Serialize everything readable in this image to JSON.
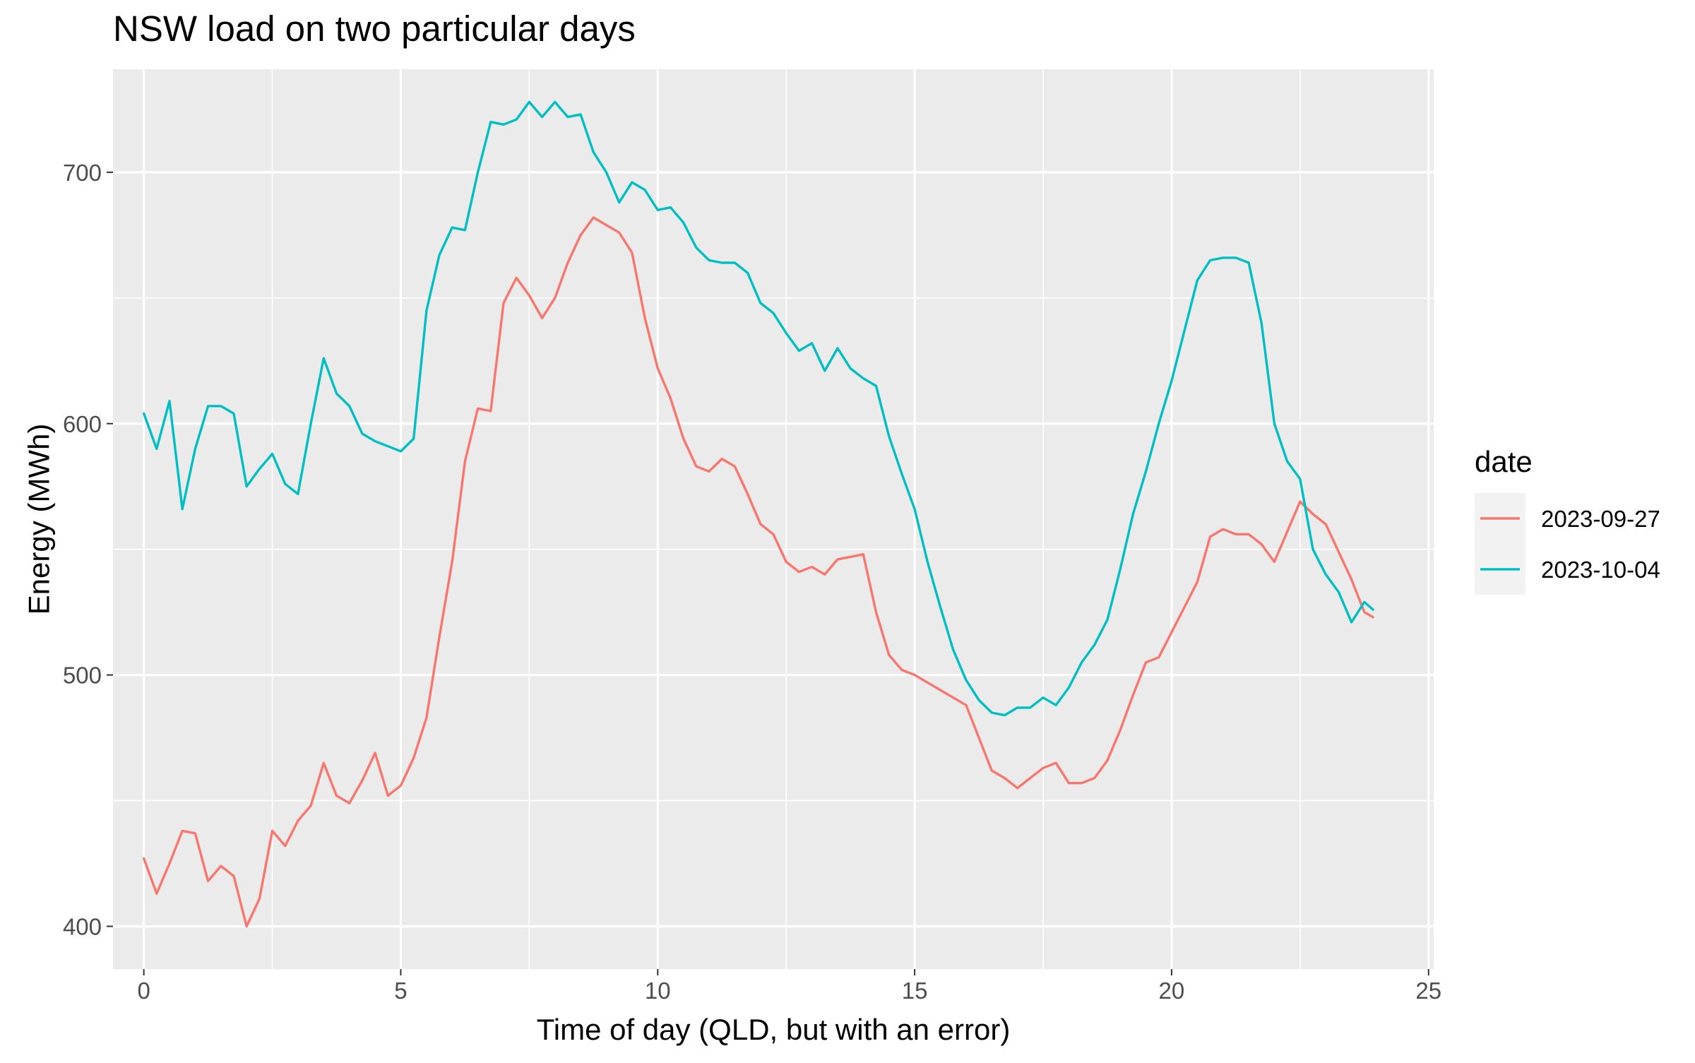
{
  "chart_data": {
    "type": "line",
    "title": "NSW load on two particular days",
    "xlabel": "Time of day (QLD, but with an error)",
    "ylabel": "Energy (MWh)",
    "xlim": [
      -0.6,
      25.1
    ],
    "ylim": [
      383,
      741
    ],
    "x_ticks": [
      0,
      5,
      10,
      15,
      20,
      25
    ],
    "x_tick_labels": [
      "0",
      "5",
      "10",
      "15",
      "20",
      "25"
    ],
    "y_ticks": [
      400,
      500,
      600,
      700
    ],
    "y_tick_labels": [
      "400",
      "500",
      "600",
      "700"
    ],
    "grid": true,
    "legend": {
      "title": "date",
      "position": "right"
    },
    "series": [
      {
        "name": "2023-09-27",
        "color": "#F8766D",
        "points": [
          [
            0.0,
            427
          ],
          [
            0.25,
            413
          ],
          [
            0.5,
            425
          ],
          [
            0.75,
            438
          ],
          [
            1.0,
            437
          ],
          [
            1.25,
            418
          ],
          [
            1.5,
            424
          ],
          [
            1.75,
            420
          ],
          [
            2.0,
            400
          ],
          [
            2.25,
            411
          ],
          [
            2.5,
            438
          ],
          [
            2.75,
            432
          ],
          [
            3.0,
            442
          ],
          [
            3.25,
            448
          ],
          [
            3.5,
            465
          ],
          [
            3.75,
            452
          ],
          [
            4.0,
            449
          ],
          [
            4.25,
            458
          ],
          [
            4.5,
            469
          ],
          [
            4.75,
            452
          ],
          [
            5.0,
            456
          ],
          [
            5.25,
            467
          ],
          [
            5.5,
            483
          ],
          [
            5.75,
            515
          ],
          [
            6.0,
            545
          ],
          [
            6.25,
            585
          ],
          [
            6.5,
            606
          ],
          [
            6.75,
            605
          ],
          [
            7.0,
            648
          ],
          [
            7.25,
            658
          ],
          [
            7.5,
            651
          ],
          [
            7.75,
            642
          ],
          [
            8.0,
            650
          ],
          [
            8.25,
            664
          ],
          [
            8.5,
            675
          ],
          [
            8.75,
            682
          ],
          [
            9.0,
            679
          ],
          [
            9.25,
            676
          ],
          [
            9.5,
            668
          ],
          [
            9.75,
            642
          ],
          [
            10.0,
            622
          ],
          [
            10.25,
            610
          ],
          [
            10.5,
            594
          ],
          [
            10.75,
            583
          ],
          [
            11.0,
            581
          ],
          [
            11.25,
            586
          ],
          [
            11.5,
            583
          ],
          [
            11.75,
            572
          ],
          [
            12.0,
            560
          ],
          [
            12.25,
            556
          ],
          [
            12.5,
            545
          ],
          [
            12.75,
            541
          ],
          [
            13.0,
            543
          ],
          [
            13.25,
            540
          ],
          [
            13.5,
            546
          ],
          [
            13.75,
            547
          ],
          [
            14.0,
            548
          ],
          [
            14.25,
            525
          ],
          [
            14.5,
            508
          ],
          [
            14.75,
            502
          ],
          [
            15.0,
            500
          ],
          [
            15.25,
            497
          ],
          [
            15.5,
            494
          ],
          [
            15.75,
            491
          ],
          [
            16.0,
            488
          ],
          [
            16.25,
            475
          ],
          [
            16.5,
            462
          ],
          [
            16.75,
            459
          ],
          [
            17.0,
            455
          ],
          [
            17.25,
            459
          ],
          [
            17.5,
            463
          ],
          [
            17.75,
            465
          ],
          [
            18.0,
            457
          ],
          [
            18.25,
            457
          ],
          [
            18.5,
            459
          ],
          [
            18.75,
            466
          ],
          [
            19.0,
            478
          ],
          [
            19.25,
            492
          ],
          [
            19.5,
            505
          ],
          [
            19.75,
            507
          ],
          [
            20.0,
            517
          ],
          [
            20.25,
            527
          ],
          [
            20.5,
            537
          ],
          [
            20.75,
            555
          ],
          [
            21.0,
            558
          ],
          [
            21.25,
            556
          ],
          [
            21.5,
            556
          ],
          [
            21.75,
            552
          ],
          [
            22.0,
            545
          ],
          [
            22.25,
            557
          ],
          [
            22.5,
            569
          ],
          [
            22.75,
            564
          ],
          [
            23.0,
            560
          ],
          [
            23.25,
            549
          ],
          [
            23.5,
            538
          ],
          [
            23.75,
            525
          ],
          [
            23.92,
            523
          ]
        ]
      },
      {
        "name": "2023-10-04",
        "color": "#00BFC4",
        "points": [
          [
            0.0,
            604
          ],
          [
            0.25,
            590
          ],
          [
            0.5,
            609
          ],
          [
            0.75,
            566
          ],
          [
            1.0,
            590
          ],
          [
            1.25,
            607
          ],
          [
            1.5,
            607
          ],
          [
            1.75,
            604
          ],
          [
            2.0,
            575
          ],
          [
            2.25,
            582
          ],
          [
            2.5,
            588
          ],
          [
            2.75,
            576
          ],
          [
            3.0,
            572
          ],
          [
            3.25,
            600
          ],
          [
            3.5,
            626
          ],
          [
            3.75,
            612
          ],
          [
            4.0,
            607
          ],
          [
            4.25,
            596
          ],
          [
            4.5,
            593
          ],
          [
            4.75,
            591
          ],
          [
            5.0,
            589
          ],
          [
            5.25,
            594
          ],
          [
            5.5,
            645
          ],
          [
            5.75,
            667
          ],
          [
            6.0,
            678
          ],
          [
            6.25,
            677
          ],
          [
            6.5,
            700
          ],
          [
            6.75,
            720
          ],
          [
            7.0,
            719
          ],
          [
            7.25,
            721
          ],
          [
            7.5,
            728
          ],
          [
            7.75,
            722
          ],
          [
            8.0,
            728
          ],
          [
            8.25,
            722
          ],
          [
            8.5,
            723
          ],
          [
            8.75,
            708
          ],
          [
            9.0,
            700
          ],
          [
            9.25,
            688
          ],
          [
            9.5,
            696
          ],
          [
            9.75,
            693
          ],
          [
            10.0,
            685
          ],
          [
            10.25,
            686
          ],
          [
            10.5,
            680
          ],
          [
            10.75,
            670
          ],
          [
            11.0,
            665
          ],
          [
            11.25,
            664
          ],
          [
            11.5,
            664
          ],
          [
            11.75,
            660
          ],
          [
            12.0,
            648
          ],
          [
            12.25,
            644
          ],
          [
            12.5,
            636
          ],
          [
            12.75,
            629
          ],
          [
            13.0,
            632
          ],
          [
            13.25,
            621
          ],
          [
            13.5,
            630
          ],
          [
            13.75,
            622
          ],
          [
            14.0,
            618
          ],
          [
            14.25,
            615
          ],
          [
            14.5,
            595
          ],
          [
            14.75,
            580
          ],
          [
            15.0,
            566
          ],
          [
            15.25,
            545
          ],
          [
            15.5,
            527
          ],
          [
            15.75,
            510
          ],
          [
            16.0,
            498
          ],
          [
            16.25,
            490
          ],
          [
            16.5,
            485
          ],
          [
            16.75,
            484
          ],
          [
            17.0,
            487
          ],
          [
            17.25,
            487
          ],
          [
            17.5,
            491
          ],
          [
            17.75,
            488
          ],
          [
            18.0,
            495
          ],
          [
            18.25,
            505
          ],
          [
            18.5,
            512
          ],
          [
            18.75,
            522
          ],
          [
            19.0,
            542
          ],
          [
            19.25,
            564
          ],
          [
            19.5,
            581
          ],
          [
            19.75,
            600
          ],
          [
            20.0,
            617
          ],
          [
            20.25,
            637
          ],
          [
            20.5,
            657
          ],
          [
            20.75,
            665
          ],
          [
            21.0,
            666
          ],
          [
            21.25,
            666
          ],
          [
            21.5,
            664
          ],
          [
            21.75,
            640
          ],
          [
            22.0,
            600
          ],
          [
            22.25,
            585
          ],
          [
            22.5,
            578
          ],
          [
            22.75,
            550
          ],
          [
            23.0,
            540
          ],
          [
            23.25,
            533
          ],
          [
            23.5,
            521
          ],
          [
            23.75,
            529
          ],
          [
            23.92,
            526
          ]
        ]
      }
    ]
  }
}
